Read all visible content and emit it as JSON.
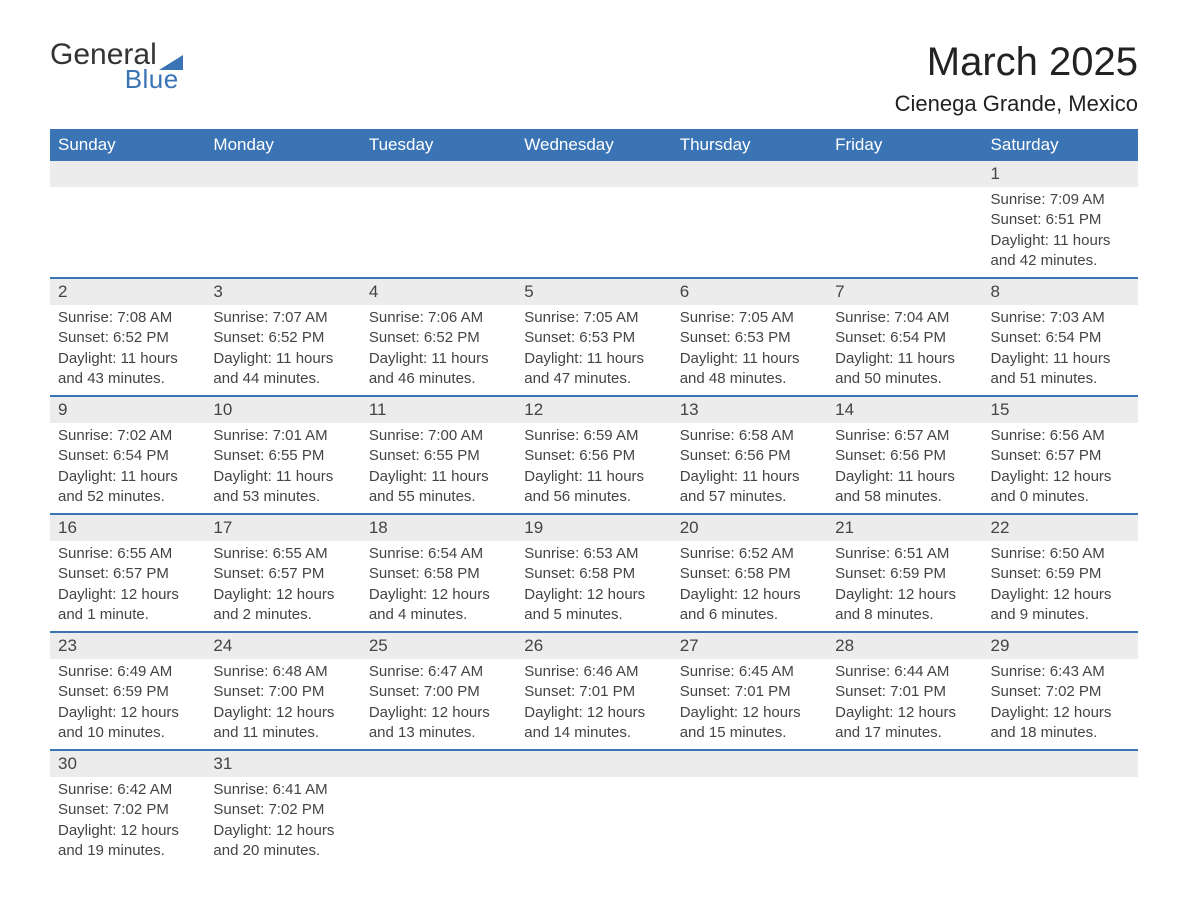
{
  "logo": {
    "word1": "General",
    "word2": "Blue",
    "tri_color": "#3a74b5"
  },
  "header": {
    "month_title": "March 2025",
    "location": "Cienega Grande, Mexico"
  },
  "colors": {
    "header_bg": "#3a74b5",
    "header_text": "#ffffff",
    "daynum_bg": "#ececec",
    "row_border": "#3a74b5",
    "text": "#444444",
    "page_bg": "#ffffff"
  },
  "typography": {
    "title_fontsize_pt": 30,
    "location_fontsize_pt": 16,
    "header_fontsize_pt": 13,
    "cell_fontsize_pt": 11
  },
  "calendar": {
    "type": "table",
    "columns": [
      "Sunday",
      "Monday",
      "Tuesday",
      "Wednesday",
      "Thursday",
      "Friday",
      "Saturday"
    ],
    "weeks": [
      [
        null,
        null,
        null,
        null,
        null,
        null,
        {
          "day": "1",
          "sunrise": "Sunrise: 7:09 AM",
          "sunset": "Sunset: 6:51 PM",
          "daylight": "Daylight: 11 hours and 42 minutes."
        }
      ],
      [
        {
          "day": "2",
          "sunrise": "Sunrise: 7:08 AM",
          "sunset": "Sunset: 6:52 PM",
          "daylight": "Daylight: 11 hours and 43 minutes."
        },
        {
          "day": "3",
          "sunrise": "Sunrise: 7:07 AM",
          "sunset": "Sunset: 6:52 PM",
          "daylight": "Daylight: 11 hours and 44 minutes."
        },
        {
          "day": "4",
          "sunrise": "Sunrise: 7:06 AM",
          "sunset": "Sunset: 6:52 PM",
          "daylight": "Daylight: 11 hours and 46 minutes."
        },
        {
          "day": "5",
          "sunrise": "Sunrise: 7:05 AM",
          "sunset": "Sunset: 6:53 PM",
          "daylight": "Daylight: 11 hours and 47 minutes."
        },
        {
          "day": "6",
          "sunrise": "Sunrise: 7:05 AM",
          "sunset": "Sunset: 6:53 PM",
          "daylight": "Daylight: 11 hours and 48 minutes."
        },
        {
          "day": "7",
          "sunrise": "Sunrise: 7:04 AM",
          "sunset": "Sunset: 6:54 PM",
          "daylight": "Daylight: 11 hours and 50 minutes."
        },
        {
          "day": "8",
          "sunrise": "Sunrise: 7:03 AM",
          "sunset": "Sunset: 6:54 PM",
          "daylight": "Daylight: 11 hours and 51 minutes."
        }
      ],
      [
        {
          "day": "9",
          "sunrise": "Sunrise: 7:02 AM",
          "sunset": "Sunset: 6:54 PM",
          "daylight": "Daylight: 11 hours and 52 minutes."
        },
        {
          "day": "10",
          "sunrise": "Sunrise: 7:01 AM",
          "sunset": "Sunset: 6:55 PM",
          "daylight": "Daylight: 11 hours and 53 minutes."
        },
        {
          "day": "11",
          "sunrise": "Sunrise: 7:00 AM",
          "sunset": "Sunset: 6:55 PM",
          "daylight": "Daylight: 11 hours and 55 minutes."
        },
        {
          "day": "12",
          "sunrise": "Sunrise: 6:59 AM",
          "sunset": "Sunset: 6:56 PM",
          "daylight": "Daylight: 11 hours and 56 minutes."
        },
        {
          "day": "13",
          "sunrise": "Sunrise: 6:58 AM",
          "sunset": "Sunset: 6:56 PM",
          "daylight": "Daylight: 11 hours and 57 minutes."
        },
        {
          "day": "14",
          "sunrise": "Sunrise: 6:57 AM",
          "sunset": "Sunset: 6:56 PM",
          "daylight": "Daylight: 11 hours and 58 minutes."
        },
        {
          "day": "15",
          "sunrise": "Sunrise: 6:56 AM",
          "sunset": "Sunset: 6:57 PM",
          "daylight": "Daylight: 12 hours and 0 minutes."
        }
      ],
      [
        {
          "day": "16",
          "sunrise": "Sunrise: 6:55 AM",
          "sunset": "Sunset: 6:57 PM",
          "daylight": "Daylight: 12 hours and 1 minute."
        },
        {
          "day": "17",
          "sunrise": "Sunrise: 6:55 AM",
          "sunset": "Sunset: 6:57 PM",
          "daylight": "Daylight: 12 hours and 2 minutes."
        },
        {
          "day": "18",
          "sunrise": "Sunrise: 6:54 AM",
          "sunset": "Sunset: 6:58 PM",
          "daylight": "Daylight: 12 hours and 4 minutes."
        },
        {
          "day": "19",
          "sunrise": "Sunrise: 6:53 AM",
          "sunset": "Sunset: 6:58 PM",
          "daylight": "Daylight: 12 hours and 5 minutes."
        },
        {
          "day": "20",
          "sunrise": "Sunrise: 6:52 AM",
          "sunset": "Sunset: 6:58 PM",
          "daylight": "Daylight: 12 hours and 6 minutes."
        },
        {
          "day": "21",
          "sunrise": "Sunrise: 6:51 AM",
          "sunset": "Sunset: 6:59 PM",
          "daylight": "Daylight: 12 hours and 8 minutes."
        },
        {
          "day": "22",
          "sunrise": "Sunrise: 6:50 AM",
          "sunset": "Sunset: 6:59 PM",
          "daylight": "Daylight: 12 hours and 9 minutes."
        }
      ],
      [
        {
          "day": "23",
          "sunrise": "Sunrise: 6:49 AM",
          "sunset": "Sunset: 6:59 PM",
          "daylight": "Daylight: 12 hours and 10 minutes."
        },
        {
          "day": "24",
          "sunrise": "Sunrise: 6:48 AM",
          "sunset": "Sunset: 7:00 PM",
          "daylight": "Daylight: 12 hours and 11 minutes."
        },
        {
          "day": "25",
          "sunrise": "Sunrise: 6:47 AM",
          "sunset": "Sunset: 7:00 PM",
          "daylight": "Daylight: 12 hours and 13 minutes."
        },
        {
          "day": "26",
          "sunrise": "Sunrise: 6:46 AM",
          "sunset": "Sunset: 7:01 PM",
          "daylight": "Daylight: 12 hours and 14 minutes."
        },
        {
          "day": "27",
          "sunrise": "Sunrise: 6:45 AM",
          "sunset": "Sunset: 7:01 PM",
          "daylight": "Daylight: 12 hours and 15 minutes."
        },
        {
          "day": "28",
          "sunrise": "Sunrise: 6:44 AM",
          "sunset": "Sunset: 7:01 PM",
          "daylight": "Daylight: 12 hours and 17 minutes."
        },
        {
          "day": "29",
          "sunrise": "Sunrise: 6:43 AM",
          "sunset": "Sunset: 7:02 PM",
          "daylight": "Daylight: 12 hours and 18 minutes."
        }
      ],
      [
        {
          "day": "30",
          "sunrise": "Sunrise: 6:42 AM",
          "sunset": "Sunset: 7:02 PM",
          "daylight": "Daylight: 12 hours and 19 minutes."
        },
        {
          "day": "31",
          "sunrise": "Sunrise: 6:41 AM",
          "sunset": "Sunset: 7:02 PM",
          "daylight": "Daylight: 12 hours and 20 minutes."
        },
        null,
        null,
        null,
        null,
        null
      ]
    ]
  }
}
